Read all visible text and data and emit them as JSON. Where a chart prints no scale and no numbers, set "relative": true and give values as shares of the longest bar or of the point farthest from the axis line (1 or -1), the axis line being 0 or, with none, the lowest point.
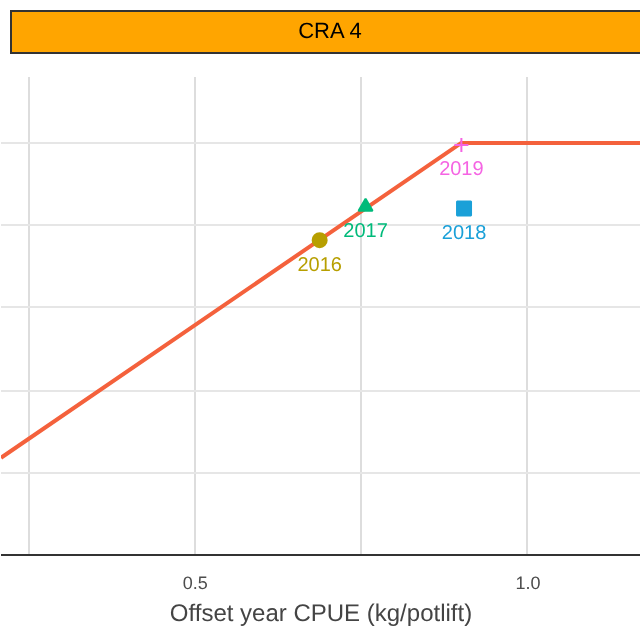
{
  "chart_data": {
    "type": "scatter",
    "title": "CRA 4",
    "xlabel": "Offset year CPUE (kg/potlift)",
    "relative": true,
    "xlim": [
      0.208,
      1.17
    ],
    "xticks": [
      {
        "value": 0.25,
        "label": null
      },
      0.5,
      {
        "value": 0.75,
        "label": null
      },
      {
        "value": 1.0,
        "label": "1.0"
      }
    ],
    "grid": true,
    "series": [
      {
        "type": "line",
        "color": "#f4613c",
        "x": [
          0.208,
          0.9,
          1.17
        ],
        "values": [
          0.236,
          1.0,
          1.0
        ]
      },
      {
        "name": "2016",
        "color": "#b79f00",
        "marker": "circle",
        "x": [
          0.687
        ],
        "values": [
          0.764
        ]
      },
      {
        "name": "2017",
        "color": "#00ba7a",
        "marker": "triangle",
        "x": [
          0.756
        ],
        "values": [
          0.845
        ]
      },
      {
        "name": "2018",
        "color": "#1aa0d8",
        "marker": "square",
        "x": [
          0.904
        ],
        "values": [
          0.841
        ]
      },
      {
        "name": "2019",
        "color": "#f564e3",
        "marker": "cross",
        "x": [
          0.9
        ],
        "values": [
          0.995
        ]
      }
    ]
  }
}
